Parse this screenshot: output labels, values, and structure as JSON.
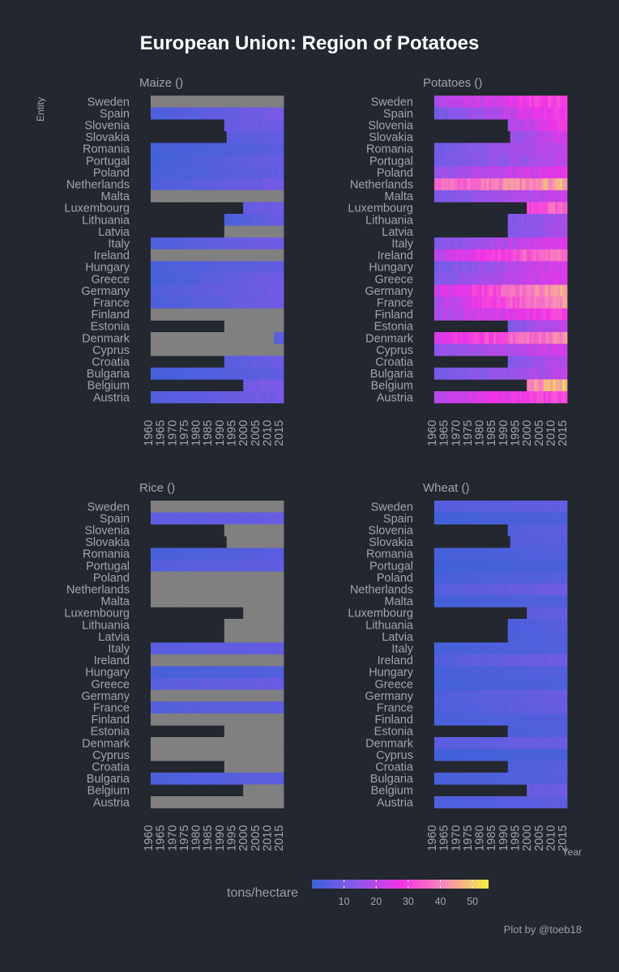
{
  "title": "European Union: Region of Potatoes",
  "caption": "Plot by @toeb18",
  "y_axis_title": "Entity",
  "x_axis_title": "Year",
  "legend": {
    "title": "tons/hectare",
    "ticks": [
      10,
      20,
      30,
      40,
      50
    ],
    "range": [
      0,
      55
    ],
    "colors": [
      "#3d62d8",
      "#8a58ea",
      "#f233e6",
      "#f88ab8",
      "#f4f040"
    ]
  },
  "colors": {
    "background": "#23272f",
    "missing": "#808080",
    "text": "#a0a4ab"
  },
  "chart_data": [
    {
      "type": "heatmap",
      "title": "Maize ()",
      "x_ticks": [
        "1960",
        "1965",
        "1970",
        "1975",
        "1980",
        "1985",
        "1990",
        "1995",
        "2000",
        "2005",
        "2010",
        "2015"
      ],
      "rows": [
        {
          "name": "Sweden",
          "start": 1961,
          "from": null,
          "to": null
        },
        {
          "name": "Spain",
          "start": 1961,
          "from": 2.5,
          "to": 10.5
        },
        {
          "name": "Slovenia",
          "start": 1992,
          "from": 7.5,
          "to": 9.0
        },
        {
          "name": "Slovakia",
          "start": 1993,
          "from": 5.5,
          "to": 7.0
        },
        {
          "name": "Romania",
          "start": 1961,
          "from": 1.5,
          "to": 5.0
        },
        {
          "name": "Portugal",
          "start": 1961,
          "from": 1.0,
          "to": 8.0
        },
        {
          "name": "Poland",
          "start": 1961,
          "from": 2.0,
          "to": 6.5
        },
        {
          "name": "Netherlands",
          "start": 1961,
          "from": 3.0,
          "to": 10.0
        },
        {
          "name": "Malta",
          "start": 1961,
          "from": null,
          "to": null
        },
        {
          "name": "Luxembourg",
          "start": 2000,
          "from": 7.0,
          "to": 9.0
        },
        {
          "name": "Lithuania",
          "start": 1992,
          "from": 2.5,
          "to": 8.0
        },
        {
          "name": "Latvia",
          "start": 1992,
          "from": null,
          "to": null
        },
        {
          "name": "Italy",
          "start": 1961,
          "from": 3.0,
          "to": 9.5
        },
        {
          "name": "Ireland",
          "start": 1961,
          "from": null,
          "to": null
        },
        {
          "name": "Hungary",
          "start": 1961,
          "from": 2.5,
          "to": 6.5
        },
        {
          "name": "Greece",
          "start": 1961,
          "from": 1.5,
          "to": 10.0
        },
        {
          "name": "Germany",
          "start": 1961,
          "from": 3.5,
          "to": 9.5
        },
        {
          "name": "France",
          "start": 1961,
          "from": 2.5,
          "to": 9.5
        },
        {
          "name": "Finland",
          "start": 1961,
          "from": null,
          "to": null
        },
        {
          "name": "Estonia",
          "start": 1992,
          "from": null,
          "to": null
        },
        {
          "name": "Denmark",
          "start": 1961,
          "from": null,
          "to": null,
          "late_start": 2013,
          "late_from": 4.0,
          "late_to": 6.0
        },
        {
          "name": "Cyprus",
          "start": 1961,
          "from": null,
          "to": null
        },
        {
          "name": "Croatia",
          "start": 1992,
          "from": 5.0,
          "to": 8.5
        },
        {
          "name": "Bulgaria",
          "start": 1961,
          "from": 1.5,
          "to": 6.0
        },
        {
          "name": "Belgium",
          "start": 2000,
          "from": 9.0,
          "to": 11.5
        },
        {
          "name": "Austria",
          "start": 1961,
          "from": 3.5,
          "to": 10.5
        }
      ]
    },
    {
      "type": "heatmap",
      "title": "Potatoes ()",
      "x_ticks": [
        "1960",
        "1965",
        "1970",
        "1975",
        "1980",
        "1985",
        "1990",
        "1995",
        "2000",
        "2005",
        "2010",
        "2015"
      ],
      "rows": [
        {
          "name": "Sweden",
          "start": 1961,
          "from": 18,
          "to": 32
        },
        {
          "name": "Spain",
          "start": 1961,
          "from": 10,
          "to": 30
        },
        {
          "name": "Slovenia",
          "start": 1992,
          "from": 18,
          "to": 28
        },
        {
          "name": "Slovakia",
          "start": 1993,
          "from": 14,
          "to": 24
        },
        {
          "name": "Romania",
          "start": 1961,
          "from": 9,
          "to": 22
        },
        {
          "name": "Portugal",
          "start": 1961,
          "from": 10,
          "to": 20
        },
        {
          "name": "Poland",
          "start": 1961,
          "from": 15,
          "to": 26
        },
        {
          "name": "Netherlands",
          "start": 1961,
          "from": 35,
          "to": 45
        },
        {
          "name": "Malta",
          "start": 1961,
          "from": 12,
          "to": 22
        },
        {
          "name": "Luxembourg",
          "start": 2000,
          "from": 30,
          "to": 38
        },
        {
          "name": "Lithuania",
          "start": 1992,
          "from": 12,
          "to": 18
        },
        {
          "name": "Latvia",
          "start": 1992,
          "from": 12,
          "to": 18
        },
        {
          "name": "Italy",
          "start": 1961,
          "from": 12,
          "to": 26
        },
        {
          "name": "Ireland",
          "start": 1961,
          "from": 20,
          "to": 40
        },
        {
          "name": "Hungary",
          "start": 1961,
          "from": 10,
          "to": 25
        },
        {
          "name": "Greece",
          "start": 1961,
          "from": 12,
          "to": 25
        },
        {
          "name": "Germany",
          "start": 1961,
          "from": 22,
          "to": 45
        },
        {
          "name": "France",
          "start": 1961,
          "from": 18,
          "to": 44
        },
        {
          "name": "Finland",
          "start": 1961,
          "from": 18,
          "to": 30
        },
        {
          "name": "Estonia",
          "start": 1992,
          "from": 12,
          "to": 22
        },
        {
          "name": "Denmark",
          "start": 1961,
          "from": 25,
          "to": 42
        },
        {
          "name": "Cyprus",
          "start": 1961,
          "from": 14,
          "to": 24
        },
        {
          "name": "Croatia",
          "start": 1992,
          "from": 12,
          "to": 20
        },
        {
          "name": "Bulgaria",
          "start": 1961,
          "from": 10,
          "to": 20
        },
        {
          "name": "Belgium",
          "start": 2000,
          "from": 40,
          "to": 50
        },
        {
          "name": "Austria",
          "start": 1961,
          "from": 20,
          "to": 32
        }
      ]
    },
    {
      "type": "heatmap",
      "title": "Rice ()",
      "x_ticks": [
        "1960",
        "1965",
        "1970",
        "1975",
        "1980",
        "1985",
        "1990",
        "1995",
        "2000",
        "2005",
        "2010",
        "2015"
      ],
      "rows": [
        {
          "name": "Sweden",
          "start": 1961,
          "from": null,
          "to": null
        },
        {
          "name": "Spain",
          "start": 1961,
          "from": 6.0,
          "to": 7.5
        },
        {
          "name": "Slovenia",
          "start": 1992,
          "from": null,
          "to": null
        },
        {
          "name": "Slovakia",
          "start": 1993,
          "from": null,
          "to": null
        },
        {
          "name": "Romania",
          "start": 1961,
          "from": 2.0,
          "to": 5.0
        },
        {
          "name": "Portugal",
          "start": 1961,
          "from": 4.0,
          "to": 6.5
        },
        {
          "name": "Poland",
          "start": 1961,
          "from": null,
          "to": null
        },
        {
          "name": "Netherlands",
          "start": 1961,
          "from": null,
          "to": null
        },
        {
          "name": "Malta",
          "start": 1961,
          "from": null,
          "to": null
        },
        {
          "name": "Luxembourg",
          "start": 2000,
          "from": null,
          "to": null
        },
        {
          "name": "Lithuania",
          "start": 1992,
          "from": null,
          "to": null
        },
        {
          "name": "Latvia",
          "start": 1992,
          "from": null,
          "to": null
        },
        {
          "name": "Italy",
          "start": 1961,
          "from": 5.0,
          "to": 7.0
        },
        {
          "name": "Ireland",
          "start": 1961,
          "from": null,
          "to": null
        },
        {
          "name": "Hungary",
          "start": 1961,
          "from": 2.0,
          "to": 4.0
        },
        {
          "name": "Greece",
          "start": 1961,
          "from": 5.0,
          "to": 8.0
        },
        {
          "name": "Germany",
          "start": 1961,
          "from": null,
          "to": null
        },
        {
          "name": "France",
          "start": 1961,
          "from": 4.0,
          "to": 6.0
        },
        {
          "name": "Finland",
          "start": 1961,
          "from": null,
          "to": null
        },
        {
          "name": "Estonia",
          "start": 1992,
          "from": null,
          "to": null
        },
        {
          "name": "Denmark",
          "start": 1961,
          "from": null,
          "to": null
        },
        {
          "name": "Cyprus",
          "start": 1961,
          "from": null,
          "to": null
        },
        {
          "name": "Croatia",
          "start": 1992,
          "from": null,
          "to": null
        },
        {
          "name": "Bulgaria",
          "start": 1961,
          "from": 2.5,
          "to": 5.5
        },
        {
          "name": "Belgium",
          "start": 2000,
          "from": null,
          "to": null
        },
        {
          "name": "Austria",
          "start": 1961,
          "from": null,
          "to": null
        }
      ]
    },
    {
      "type": "heatmap",
      "title": "Wheat ()",
      "x_ticks": [
        "1960",
        "1965",
        "1970",
        "1975",
        "1980",
        "1985",
        "1990",
        "1995",
        "2000",
        "2005",
        "2010",
        "2015"
      ],
      "rows": [
        {
          "name": "Sweden",
          "start": 1961,
          "from": 4.0,
          "to": 6.5
        },
        {
          "name": "Spain",
          "start": 1961,
          "from": 1.0,
          "to": 3.0
        },
        {
          "name": "Slovenia",
          "start": 1992,
          "from": 4.0,
          "to": 5.5
        },
        {
          "name": "Slovakia",
          "start": 1993,
          "from": 4.0,
          "to": 5.0
        },
        {
          "name": "Romania",
          "start": 1961,
          "from": 1.5,
          "to": 4.0
        },
        {
          "name": "Portugal",
          "start": 1961,
          "from": 0.8,
          "to": 2.5
        },
        {
          "name": "Poland",
          "start": 1961,
          "from": 2.0,
          "to": 4.5
        },
        {
          "name": "Netherlands",
          "start": 1961,
          "from": 4.5,
          "to": 9.0
        },
        {
          "name": "Malta",
          "start": 1961,
          "from": 1.5,
          "to": 4.0
        },
        {
          "name": "Luxembourg",
          "start": 2000,
          "from": 5.5,
          "to": 7.0
        },
        {
          "name": "Lithuania",
          "start": 1992,
          "from": 3.0,
          "to": 5.0
        },
        {
          "name": "Latvia",
          "start": 1992,
          "from": 2.5,
          "to": 4.5
        },
        {
          "name": "Italy",
          "start": 1961,
          "from": 2.0,
          "to": 4.0
        },
        {
          "name": "Ireland",
          "start": 1961,
          "from": 4.0,
          "to": 9.5
        },
        {
          "name": "Hungary",
          "start": 1961,
          "from": 2.0,
          "to": 4.5
        },
        {
          "name": "Greece",
          "start": 1961,
          "from": 1.5,
          "to": 3.0
        },
        {
          "name": "Germany",
          "start": 1961,
          "from": 3.5,
          "to": 8.0
        },
        {
          "name": "France",
          "start": 1961,
          "from": 3.0,
          "to": 7.5
        },
        {
          "name": "Finland",
          "start": 1961,
          "from": 2.5,
          "to": 4.0
        },
        {
          "name": "Estonia",
          "start": 1992,
          "from": 2.5,
          "to": 4.0
        },
        {
          "name": "Denmark",
          "start": 1961,
          "from": 5.0,
          "to": 8.0
        },
        {
          "name": "Cyprus",
          "start": 1961,
          "from": 1.0,
          "to": 2.5
        },
        {
          "name": "Croatia",
          "start": 1992,
          "from": 3.5,
          "to": 5.0
        },
        {
          "name": "Bulgaria",
          "start": 1961,
          "from": 2.0,
          "to": 4.5
        },
        {
          "name": "Belgium",
          "start": 2000,
          "from": 7.5,
          "to": 9.0
        },
        {
          "name": "Austria",
          "start": 1961,
          "from": 3.0,
          "to": 6.0
        }
      ]
    }
  ]
}
